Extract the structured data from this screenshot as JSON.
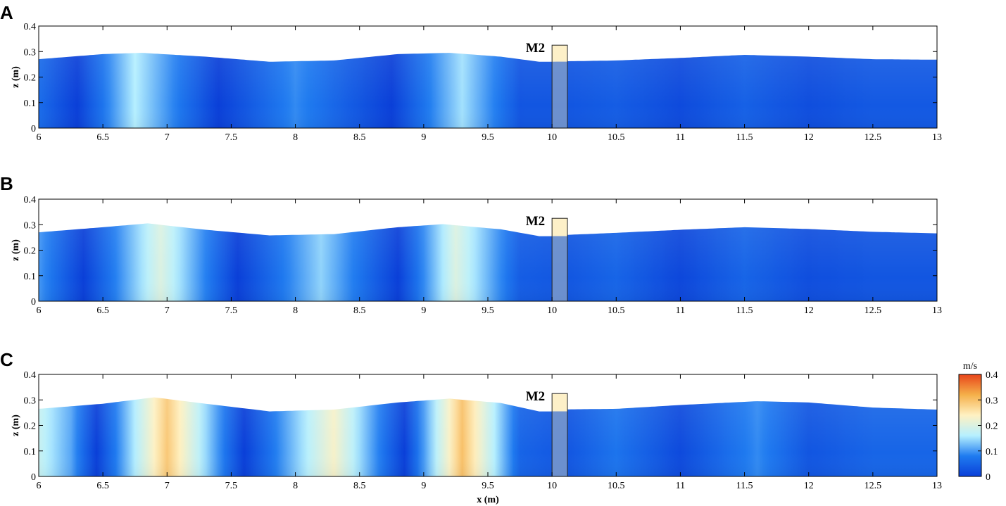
{
  "chart_data": {
    "type": "heatmap",
    "colorbar": {
      "unit": "m/s",
      "range": [
        0,
        0.4
      ],
      "ticks": [
        "0",
        "0.1",
        "0.2",
        "0.3",
        "0.4"
      ],
      "colors": [
        "#0a3fd8",
        "#1f7bf0",
        "#b6f0ff",
        "#fff1c2",
        "#f5b04a",
        "#e8451a"
      ]
    },
    "annotation": "M2",
    "structure_x": [
      10.0,
      10.12
    ],
    "structure_top": 0.325,
    "shared_x_label": "x (m)",
    "panels": [
      {
        "letter": "A",
        "xlim": [
          6,
          13
        ],
        "ylim": [
          0,
          0.4
        ],
        "xticks": [
          "6",
          "6.5",
          "7",
          "7.5",
          "8",
          "8.5",
          "9",
          "9.5",
          "10",
          "10.5",
          "11",
          "11.5",
          "12",
          "12.5",
          "13"
        ],
        "yticks": [
          "0",
          "0.1",
          "0.2",
          "0.3",
          "0.4"
        ],
        "ylabel": "z (m)",
        "surface": [
          [
            6,
            0.27
          ],
          [
            6.5,
            0.29
          ],
          [
            6.8,
            0.295
          ],
          [
            7.3,
            0.28
          ],
          [
            7.8,
            0.26
          ],
          [
            8.3,
            0.265
          ],
          [
            8.8,
            0.29
          ],
          [
            9.2,
            0.295
          ],
          [
            9.6,
            0.28
          ],
          [
            9.9,
            0.26
          ],
          [
            10.0,
            0.26
          ],
          [
            10.12,
            0.262
          ],
          [
            10.5,
            0.265
          ],
          [
            11.0,
            0.275
          ],
          [
            11.5,
            0.287
          ],
          [
            12.0,
            0.28
          ],
          [
            12.5,
            0.27
          ],
          [
            13,
            0.268
          ]
        ],
        "velocity_profile": [
          [
            6,
            0.06
          ],
          [
            6.3,
            0.0
          ],
          [
            6.75,
            0.16
          ],
          [
            7.4,
            0.0
          ],
          [
            8.0,
            0.09
          ],
          [
            8.75,
            0.0
          ],
          [
            9.3,
            0.15
          ],
          [
            9.75,
            0.03
          ],
          [
            10.12,
            0.03
          ],
          [
            10.5,
            0.04
          ],
          [
            11,
            0.015
          ],
          [
            11.5,
            0.045
          ],
          [
            12,
            0.02
          ],
          [
            12.5,
            0.035
          ],
          [
            13,
            0.035
          ]
        ]
      },
      {
        "letter": "B",
        "xlim": [
          6,
          13
        ],
        "ylim": [
          0,
          0.4
        ],
        "xticks": [
          "6",
          "6.5",
          "7",
          "7.5",
          "8",
          "8.5",
          "9",
          "9.5",
          "10",
          "10.5",
          "11",
          "11.5",
          "12",
          "12.5",
          "13"
        ],
        "yticks": [
          "0",
          "0.1",
          "0.2",
          "0.3",
          "0.4"
        ],
        "ylabel": "z (m)",
        "surface": [
          [
            6,
            0.27
          ],
          [
            6.5,
            0.29
          ],
          [
            6.85,
            0.305
          ],
          [
            7.3,
            0.28
          ],
          [
            7.8,
            0.258
          ],
          [
            8.3,
            0.263
          ],
          [
            8.8,
            0.29
          ],
          [
            9.15,
            0.302
          ],
          [
            9.6,
            0.282
          ],
          [
            9.9,
            0.255
          ],
          [
            10.0,
            0.255
          ],
          [
            10.12,
            0.26
          ],
          [
            10.5,
            0.268
          ],
          [
            11.0,
            0.28
          ],
          [
            11.5,
            0.29
          ],
          [
            12.0,
            0.283
          ],
          [
            12.5,
            0.272
          ],
          [
            13,
            0.266
          ]
        ],
        "velocity_profile": [
          [
            6,
            0.1
          ],
          [
            6.35,
            0.0
          ],
          [
            6.95,
            0.2
          ],
          [
            7.55,
            0.0
          ],
          [
            8.2,
            0.14
          ],
          [
            8.8,
            0.0
          ],
          [
            9.25,
            0.2
          ],
          [
            9.75,
            0.04
          ],
          [
            10.12,
            0.03
          ],
          [
            10.5,
            0.05
          ],
          [
            11,
            0.01
          ],
          [
            11.5,
            0.05
          ],
          [
            12,
            0.02
          ],
          [
            12.5,
            0.03
          ],
          [
            13,
            0.03
          ]
        ]
      },
      {
        "letter": "C",
        "xlim": [
          6,
          13
        ],
        "ylim": [
          0,
          0.4
        ],
        "xticks": [
          "6",
          "6.5",
          "7",
          "7.5",
          "8",
          "8.5",
          "9",
          "9.5",
          "10",
          "10.5",
          "11",
          "11.5",
          "12",
          "12.5",
          "13"
        ],
        "yticks": [
          "0",
          "0.1",
          "0.2",
          "0.3",
          "0.4"
        ],
        "ylabel": "z (m)",
        "surface": [
          [
            6,
            0.265
          ],
          [
            6.5,
            0.285
          ],
          [
            6.9,
            0.31
          ],
          [
            7.3,
            0.285
          ],
          [
            7.8,
            0.255
          ],
          [
            8.3,
            0.262
          ],
          [
            8.8,
            0.29
          ],
          [
            9.2,
            0.305
          ],
          [
            9.6,
            0.288
          ],
          [
            9.9,
            0.255
          ],
          [
            10.0,
            0.255
          ],
          [
            10.12,
            0.263
          ],
          [
            10.5,
            0.265
          ],
          [
            11.0,
            0.28
          ],
          [
            11.6,
            0.295
          ],
          [
            12.0,
            0.29
          ],
          [
            12.5,
            0.27
          ],
          [
            13,
            0.262
          ]
        ],
        "velocity_profile": [
          [
            6,
            0.18
          ],
          [
            6.25,
            0.11
          ],
          [
            6.45,
            0.0
          ],
          [
            7.0,
            0.29
          ],
          [
            7.6,
            0.0
          ],
          [
            8.3,
            0.23
          ],
          [
            8.85,
            0.0
          ],
          [
            9.3,
            0.3
          ],
          [
            9.75,
            0.05
          ],
          [
            10.12,
            0.03
          ],
          [
            10.5,
            0.07
          ],
          [
            11,
            0.015
          ],
          [
            11.6,
            0.09
          ],
          [
            12,
            0.03
          ],
          [
            12.5,
            0.05
          ],
          [
            13,
            0.05
          ]
        ]
      }
    ]
  }
}
